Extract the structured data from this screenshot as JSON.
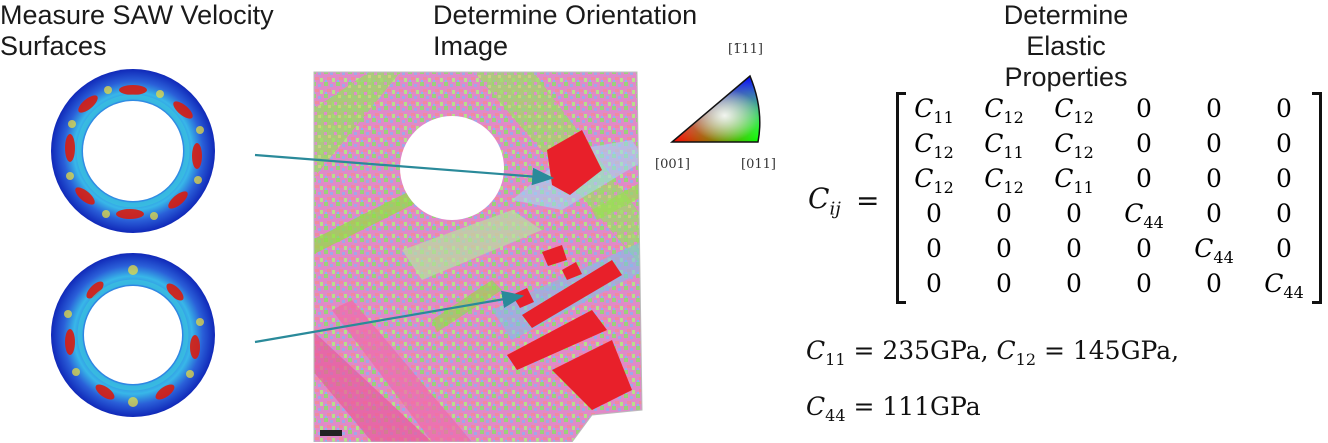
{
  "headings": {
    "saw": "Measure SAW Velocity\nSurfaces",
    "orientation": "Determine Orientation\nImage",
    "elastic": "Determine Elastic\nProperties"
  },
  "ipf_legend": {
    "top": "[1̅",
    "top_full": "[1̅11]",
    "left": "[001]",
    "right": "[011]"
  },
  "matrix": {
    "symbol": "C",
    "subscript": "ij",
    "equals": "=",
    "rows": [
      [
        [
          "C",
          "11"
        ],
        [
          "C",
          "12"
        ],
        [
          "C",
          "12"
        ],
        [
          "0",
          ""
        ],
        [
          "0",
          ""
        ],
        [
          "0",
          ""
        ]
      ],
      [
        [
          "C",
          "12"
        ],
        [
          "C",
          "11"
        ],
        [
          "C",
          "12"
        ],
        [
          "0",
          ""
        ],
        [
          "0",
          ""
        ],
        [
          "0",
          ""
        ]
      ],
      [
        [
          "C",
          "12"
        ],
        [
          "C",
          "12"
        ],
        [
          "C",
          "11"
        ],
        [
          "0",
          ""
        ],
        [
          "0",
          ""
        ],
        [
          "0",
          ""
        ]
      ],
      [
        [
          "0",
          ""
        ],
        [
          "0",
          ""
        ],
        [
          "0",
          ""
        ],
        [
          "C",
          "44"
        ],
        [
          "0",
          ""
        ],
        [
          "0",
          ""
        ]
      ],
      [
        [
          "0",
          ""
        ],
        [
          "0",
          ""
        ],
        [
          "0",
          ""
        ],
        [
          "0",
          ""
        ],
        [
          "C",
          "44"
        ],
        [
          "0",
          ""
        ]
      ],
      [
        [
          "0",
          ""
        ],
        [
          "0",
          ""
        ],
        [
          "0",
          ""
        ],
        [
          "0",
          ""
        ],
        [
          "0",
          ""
        ],
        [
          "C",
          "44"
        ]
      ]
    ]
  },
  "results": {
    "c11_sub": "11",
    "c11_val": " = 235GPa, ",
    "c12_sub": "12",
    "c12_val": " = 145GPa,",
    "c44_sub": "44",
    "c44_val": " = 111GPa"
  },
  "colors": {
    "arrow": "#2a8a9a",
    "saw_hot": "#d81c10",
    "saw_cold": "#1a3fd0"
  }
}
